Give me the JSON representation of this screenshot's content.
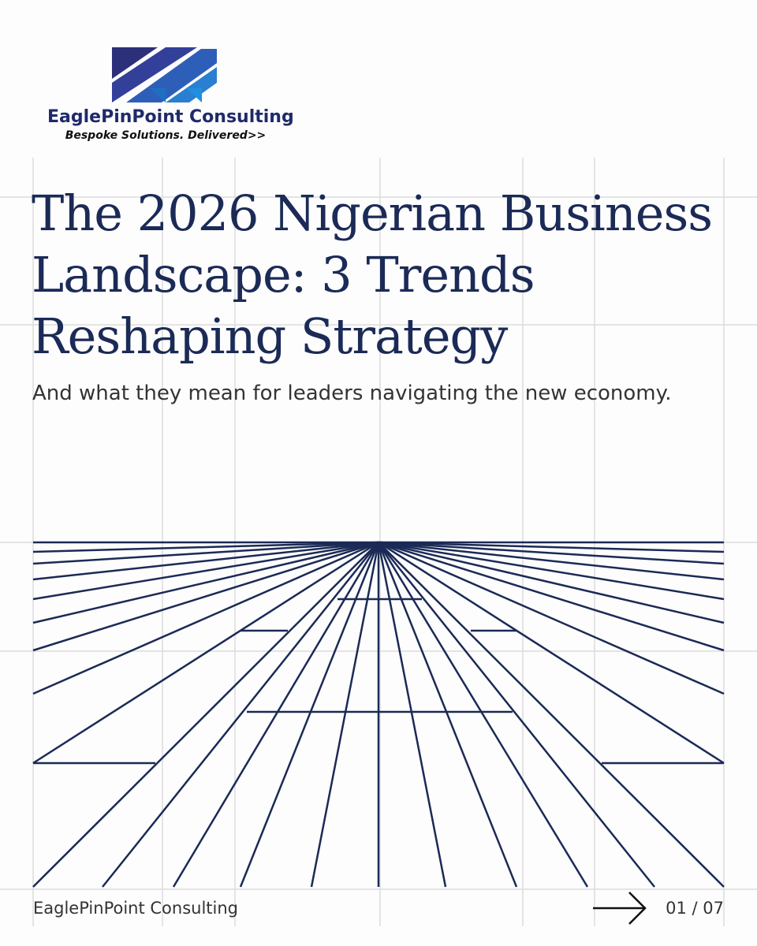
{
  "logo": {
    "name": "EaglePinPoint Consulting",
    "tagline": "Bespoke Solutions. Delivered>>"
  },
  "title_lines": [
    "The 2026 Nigerian Business",
    "Landscape: 3 Trends",
    "Reshaping Strategy"
  ],
  "subtitle": "And what they mean for leaders navigating the new economy.",
  "footer": {
    "brand": "EaglePinPoint Consulting",
    "page": "01 / 07"
  }
}
